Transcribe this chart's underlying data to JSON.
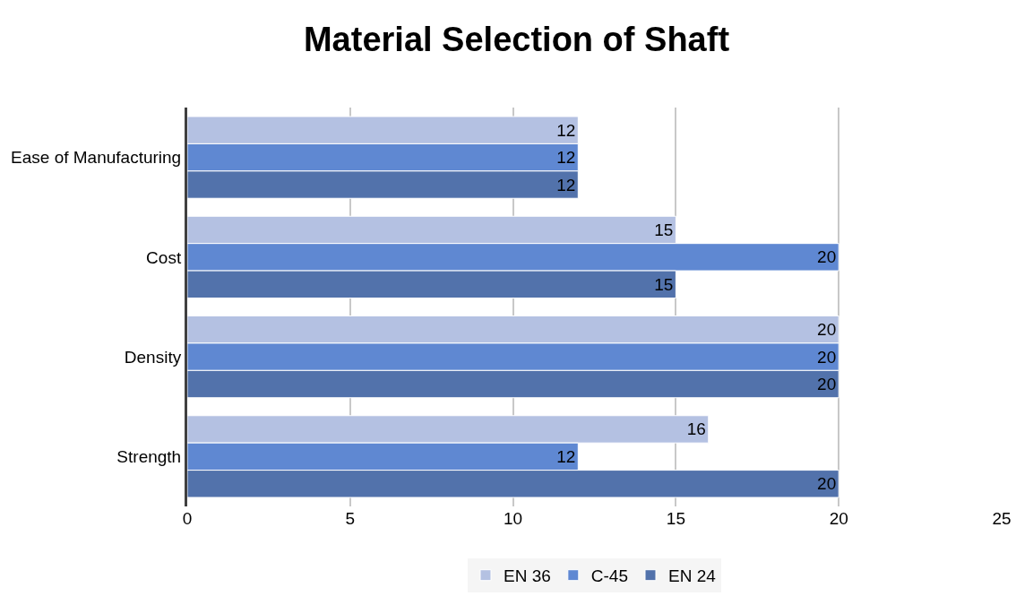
{
  "chart_data": {
    "type": "bar",
    "title": "Material Selection of Shaft",
    "orientation": "horizontal",
    "categories": [
      "Ease of Manufacturing",
      "Cost",
      "Density",
      "Strength"
    ],
    "series": [
      {
        "name": "EN 36",
        "color": "#b4c1e2",
        "values": [
          12,
          15,
          20,
          16
        ]
      },
      {
        "name": "C-45",
        "color": "#5f88d2",
        "values": [
          12,
          20,
          20,
          12
        ]
      },
      {
        "name": "EN 24",
        "color": "#5272ab",
        "values": [
          12,
          15,
          20,
          20
        ]
      }
    ],
    "xlim": [
      0,
      25
    ],
    "xticks": [
      0,
      5,
      10,
      15,
      20,
      25
    ],
    "grid": "x",
    "legend": "bottom",
    "data_labels": true
  }
}
